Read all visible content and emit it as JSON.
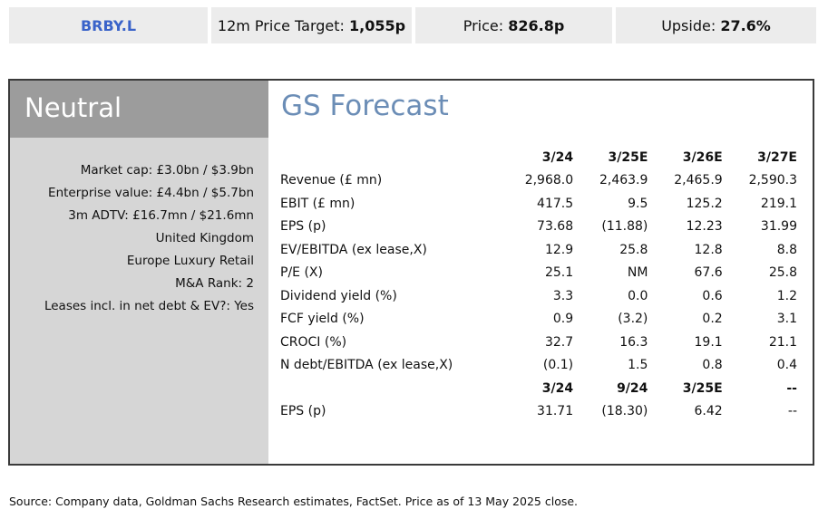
{
  "header": {
    "ticker": "BRBY.L",
    "target_label": "12m Price Target:",
    "target_value": "1,055p",
    "price_label": "Price:",
    "price_value": "826.8p",
    "upside_label": "Upside:",
    "upside_value": "27.6%"
  },
  "rating": "Neutral",
  "stats": [
    "Market cap: £3.0bn / $3.9bn",
    "Enterprise value: £4.4bn / $5.7bn",
    "3m ADTV: £16.7mn / $21.6mn",
    "United Kingdom",
    "Europe Luxury Retail",
    "M&A Rank: 2",
    "Leases incl. in net debt & EV?: Yes"
  ],
  "forecast": {
    "title": "GS Forecast",
    "annual_headers": [
      "3/24",
      "3/25E",
      "3/26E",
      "3/27E"
    ],
    "annual_rows": [
      {
        "label": "Revenue (£ mn)",
        "values": [
          "2,968.0",
          "2,463.9",
          "2,465.9",
          "2,590.3"
        ]
      },
      {
        "label": "EBIT (£ mn)",
        "values": [
          "417.5",
          "9.5",
          "125.2",
          "219.1"
        ]
      },
      {
        "label": "EPS (p)",
        "values": [
          "73.68",
          "(11.88)",
          "12.23",
          "31.99"
        ]
      },
      {
        "label": "EV/EBITDA (ex lease,X)",
        "values": [
          "12.9",
          "25.8",
          "12.8",
          "8.8"
        ]
      },
      {
        "label": "P/E (X)",
        "values": [
          "25.1",
          "NM",
          "67.6",
          "25.8"
        ]
      },
      {
        "label": "Dividend yield (%)",
        "values": [
          "3.3",
          "0.0",
          "0.6",
          "1.2"
        ]
      },
      {
        "label": "FCF yield (%)",
        "values": [
          "0.9",
          "(3.2)",
          "0.2",
          "3.1"
        ]
      },
      {
        "label": "CROCI (%)",
        "values": [
          "32.7",
          "16.3",
          "19.1",
          "21.1"
        ]
      },
      {
        "label": "N debt/EBITDA (ex lease,X)",
        "values": [
          "(0.1)",
          "1.5",
          "0.8",
          "0.4"
        ]
      }
    ],
    "half_headers": [
      "3/24",
      "9/24",
      "3/25E",
      "--"
    ],
    "half_rows": [
      {
        "label": "EPS (p)",
        "values": [
          "31.71",
          "(18.30)",
          "6.42",
          "--"
        ]
      }
    ]
  },
  "source": "Source: Company data, Goldman Sachs Research estimates, FactSet. Price as of 13 May 2025 close."
}
